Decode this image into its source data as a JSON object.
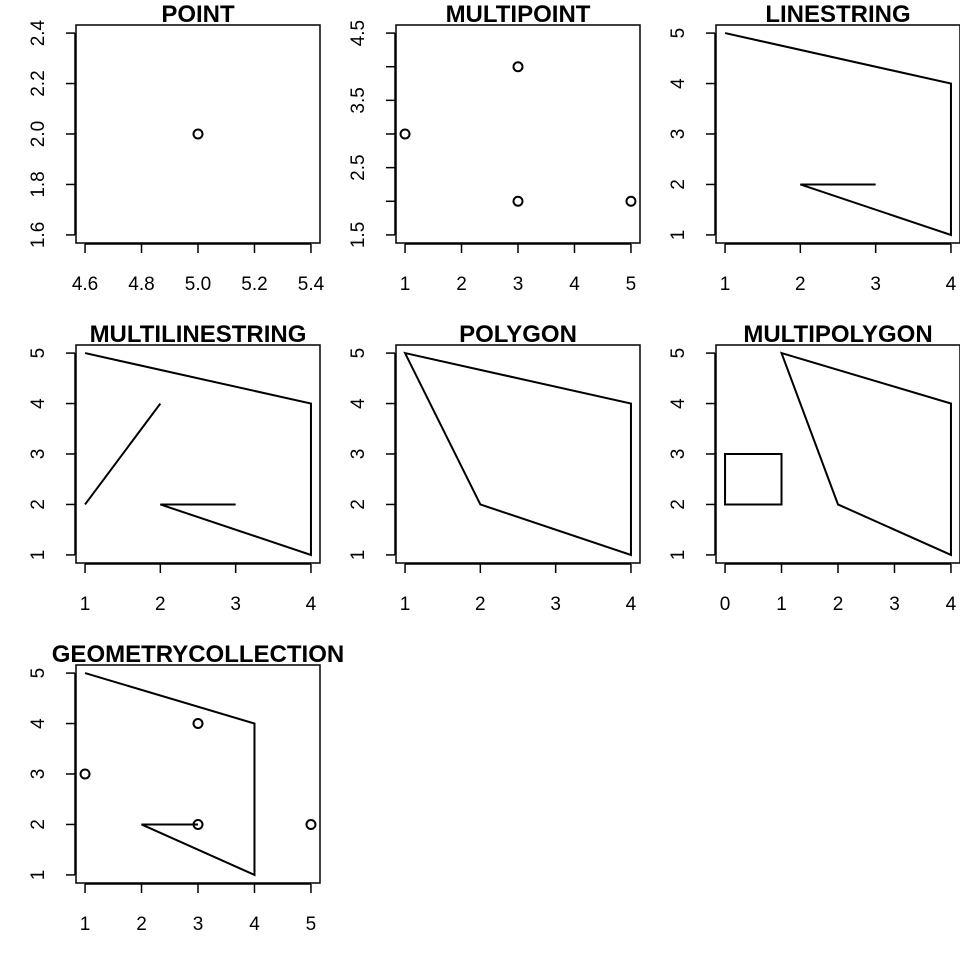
{
  "chart_data": [
    {
      "type": "scatter",
      "title": "POINT",
      "xlim": [
        4.6,
        5.4
      ],
      "ylim": [
        1.6,
        2.4
      ],
      "x_ticks": [
        "4.6",
        "4.8",
        "5.0",
        "5.2",
        "5.4"
      ],
      "y_ticks": [
        "1.6",
        "1.8",
        "2.0",
        "2.2",
        "2.4"
      ],
      "x_tick_values": [
        4.6,
        4.8,
        5.0,
        5.2,
        5.4
      ],
      "y_tick_values": [
        1.6,
        1.8,
        2.0,
        2.2,
        2.4
      ],
      "points": [
        [
          5,
          2
        ]
      ],
      "lines": [],
      "polygons": []
    },
    {
      "type": "scatter",
      "title": "MULTIPOINT",
      "xlim": [
        1,
        5
      ],
      "ylim": [
        1.5,
        4.5
      ],
      "x_ticks": [
        "1",
        "2",
        "3",
        "4",
        "5"
      ],
      "y_ticks": [
        "1.5",
        "2.5",
        "3.5",
        "4.5"
      ],
      "x_tick_values": [
        1,
        2,
        3,
        4,
        5
      ],
      "y_tick_values": [
        1.5,
        2.5,
        3.5,
        4.5
      ],
      "y_minor_ticks": [
        2,
        3,
        4
      ],
      "points": [
        [
          3,
          4
        ],
        [
          1,
          3
        ],
        [
          3,
          2
        ],
        [
          5,
          2
        ]
      ],
      "lines": [],
      "polygons": []
    },
    {
      "type": "line",
      "title": "LINESTRING",
      "xlim": [
        1,
        4
      ],
      "ylim": [
        1,
        5
      ],
      "x_ticks": [
        "1",
        "2",
        "3",
        "4"
      ],
      "y_ticks": [
        "1",
        "2",
        "3",
        "4",
        "5"
      ],
      "x_tick_values": [
        1,
        2,
        3,
        4
      ],
      "y_tick_values": [
        1,
        2,
        3,
        4,
        5
      ],
      "points": [],
      "lines": [
        [
          [
            1,
            5
          ],
          [
            4,
            4
          ],
          [
            4,
            1
          ],
          [
            2,
            2
          ],
          [
            3,
            2
          ]
        ]
      ],
      "polygons": []
    },
    {
      "type": "line",
      "title": "MULTILINESTRING",
      "xlim": [
        1,
        4
      ],
      "ylim": [
        1,
        5
      ],
      "x_ticks": [
        "1",
        "2",
        "3",
        "4"
      ],
      "y_ticks": [
        "1",
        "2",
        "3",
        "4",
        "5"
      ],
      "x_tick_values": [
        1,
        2,
        3,
        4
      ],
      "y_tick_values": [
        1,
        2,
        3,
        4,
        5
      ],
      "points": [],
      "lines": [
        [
          [
            1,
            5
          ],
          [
            4,
            4
          ],
          [
            4,
            1
          ],
          [
            2,
            2
          ],
          [
            3,
            2
          ]
        ],
        [
          [
            1,
            2
          ],
          [
            2,
            4
          ]
        ]
      ],
      "polygons": []
    },
    {
      "type": "line",
      "title": "POLYGON",
      "xlim": [
        1,
        4
      ],
      "ylim": [
        1,
        5
      ],
      "x_ticks": [
        "1",
        "2",
        "3",
        "4"
      ],
      "y_ticks": [
        "1",
        "2",
        "3",
        "4",
        "5"
      ],
      "x_tick_values": [
        1,
        2,
        3,
        4
      ],
      "y_tick_values": [
        1,
        2,
        3,
        4,
        5
      ],
      "points": [],
      "lines": [],
      "polygons": [
        [
          [
            1,
            5
          ],
          [
            4,
            4
          ],
          [
            4,
            1
          ],
          [
            2,
            2
          ],
          [
            1,
            5
          ]
        ]
      ]
    },
    {
      "type": "line",
      "title": "MULTIPOLYGON",
      "xlim": [
        0,
        4
      ],
      "ylim": [
        1,
        5
      ],
      "x_ticks": [
        "0",
        "1",
        "2",
        "3",
        "4"
      ],
      "y_ticks": [
        "1",
        "2",
        "3",
        "4",
        "5"
      ],
      "x_tick_values": [
        0,
        1,
        2,
        3,
        4
      ],
      "y_tick_values": [
        1,
        2,
        3,
        4,
        5
      ],
      "points": [],
      "lines": [],
      "polygons": [
        [
          [
            1,
            5
          ],
          [
            4,
            4
          ],
          [
            4,
            1
          ],
          [
            2,
            2
          ],
          [
            1,
            5
          ]
        ],
        [
          [
            0,
            2
          ],
          [
            1,
            2
          ],
          [
            1,
            3
          ],
          [
            0,
            3
          ],
          [
            0,
            2
          ]
        ]
      ]
    },
    {
      "type": "scatter",
      "title": "GEOMETRYCOLLECTION",
      "xlim": [
        1,
        5
      ],
      "ylim": [
        1,
        5
      ],
      "x_ticks": [
        "1",
        "2",
        "3",
        "4",
        "5"
      ],
      "y_ticks": [
        "1",
        "2",
        "3",
        "4",
        "5"
      ],
      "x_tick_values": [
        1,
        2,
        3,
        4,
        5
      ],
      "y_tick_values": [
        1,
        2,
        3,
        4,
        5
      ],
      "points": [
        [
          3,
          4
        ],
        [
          1,
          3
        ],
        [
          3,
          2
        ],
        [
          5,
          2
        ]
      ],
      "lines": [
        [
          [
            1,
            5
          ],
          [
            4,
            4
          ],
          [
            4,
            1
          ],
          [
            2,
            2
          ],
          [
            3,
            2
          ]
        ]
      ],
      "polygons": []
    }
  ]
}
